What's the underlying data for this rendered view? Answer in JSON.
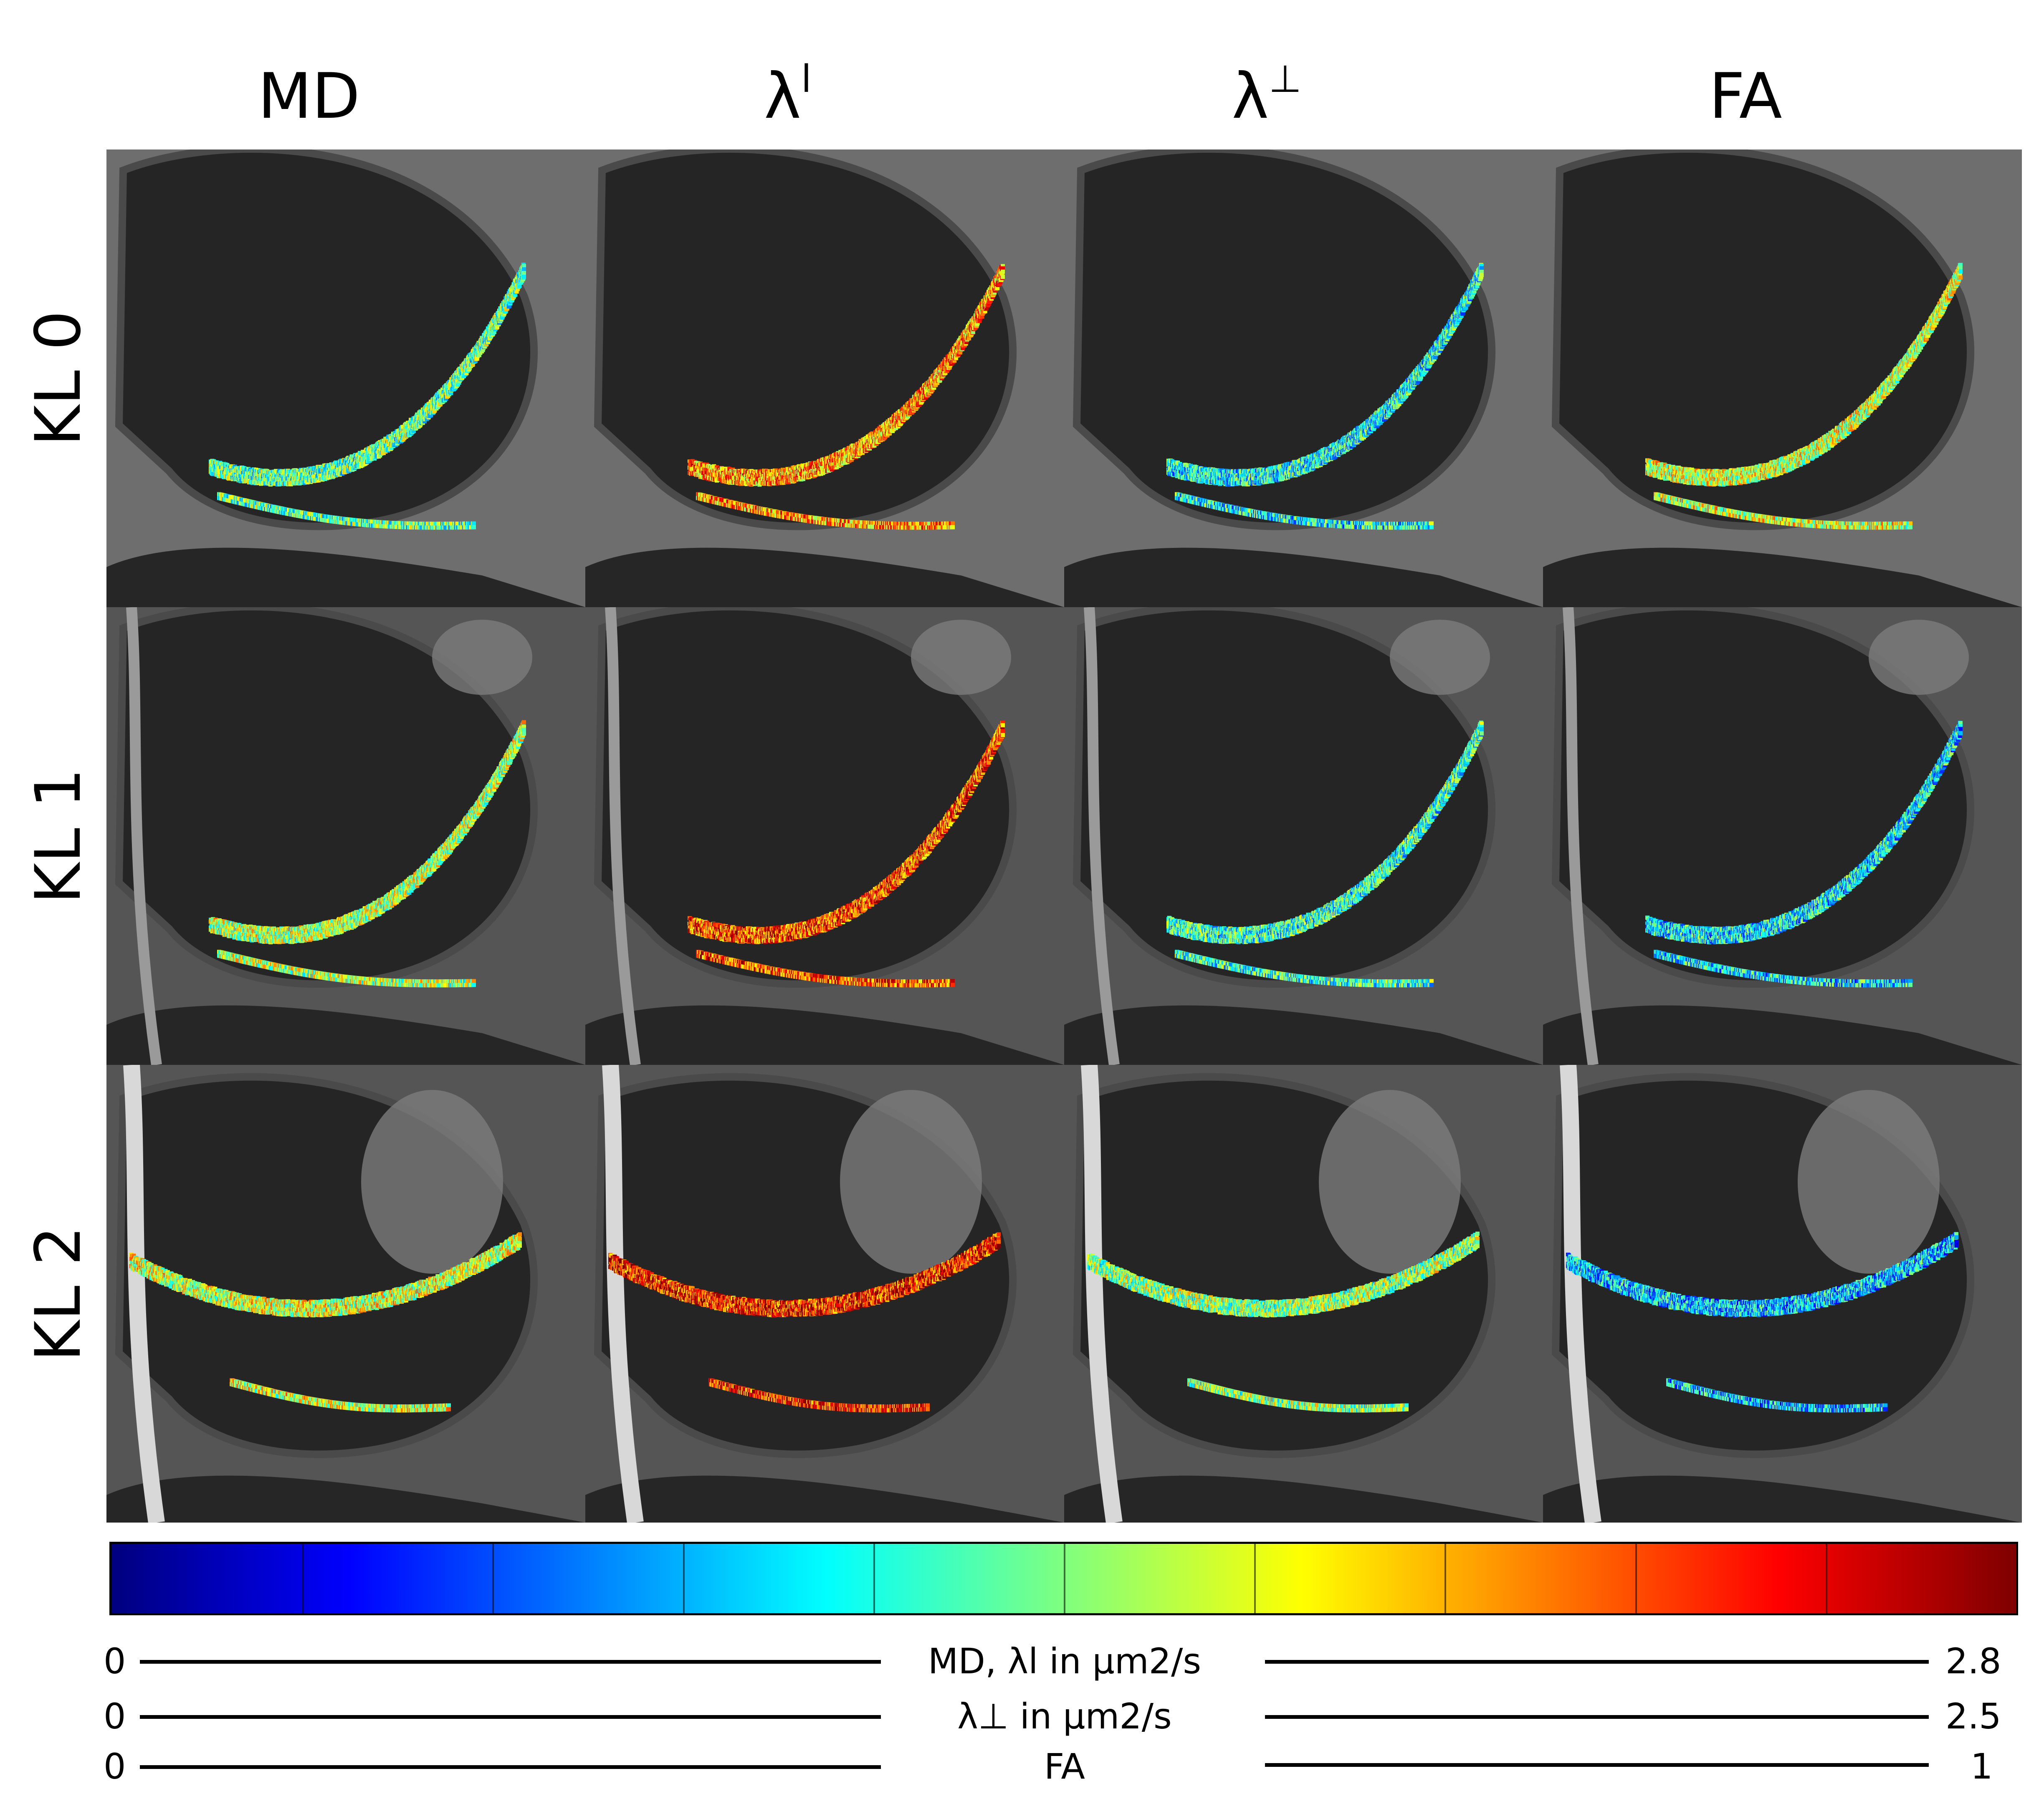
{
  "columns": [
    {
      "base": "MD",
      "sup": ""
    },
    {
      "base": "λ",
      "sup": "l"
    },
    {
      "base": "λ",
      "sup": "⊥"
    },
    {
      "base": "FA",
      "sup": ""
    }
  ],
  "rows": [
    "KL 0",
    "KL 1",
    "KL 2"
  ],
  "colormap": {
    "name": "jet",
    "stops": [
      "#00007f",
      "#0000ff",
      "#007fff",
      "#00ffff",
      "#7fff7f",
      "#ffff00",
      "#ff7f00",
      "#ff0000",
      "#7f0000"
    ]
  },
  "colorbar_scales": [
    {
      "min": "0",
      "label": "MD, λl in µm2/s",
      "max": "2.8"
    },
    {
      "min": "0",
      "label": "λ⊥ in µm2/s",
      "max": "2.5"
    },
    {
      "min": "0",
      "label": "FA",
      "max": "1"
    }
  ],
  "images": {
    "description_icons": [
      "mri-slice-image"
    ]
  }
}
